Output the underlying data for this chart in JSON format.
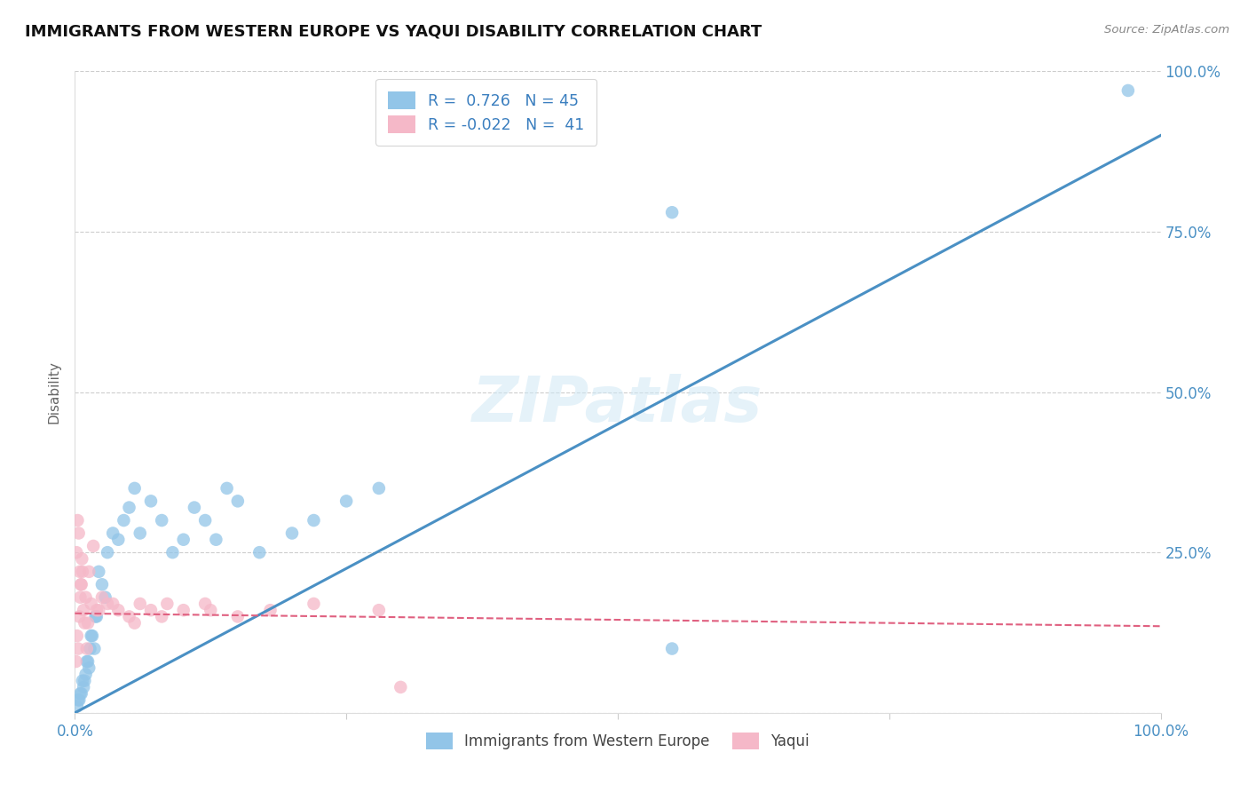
{
  "title": "IMMIGRANTS FROM WESTERN EUROPE VS YAQUI DISABILITY CORRELATION CHART",
  "source": "Source: ZipAtlas.com",
  "ylabel": "Disability",
  "watermark": "ZIPatlas",
  "blue_R": 0.726,
  "blue_N": 45,
  "pink_R": -0.022,
  "pink_N": 41,
  "blue_label": "Immigrants from Western Europe",
  "pink_label": "Yaqui",
  "blue_color": "#92c5e8",
  "pink_color": "#f5b8c8",
  "blue_line_color": "#4a90c4",
  "pink_line_color": "#e06080",
  "background_color": "#ffffff",
  "grid_color": "#c8c8c8",
  "xlim": [
    0,
    100
  ],
  "ylim": [
    0,
    100
  ],
  "blue_x": [
    0.3,
    0.5,
    0.7,
    0.8,
    1.0,
    1.2,
    1.3,
    1.5,
    1.8,
    2.0,
    2.2,
    2.5,
    2.8,
    3.0,
    3.5,
    4.0,
    4.5,
    5.0,
    5.5,
    6.0,
    7.0,
    8.0,
    9.0,
    10.0,
    11.0,
    12.0,
    13.0,
    14.0,
    15.0,
    17.0,
    20.0,
    22.0,
    25.0,
    28.0,
    55.0,
    55.0,
    97.0,
    0.2,
    0.4,
    0.6,
    0.9,
    1.1,
    1.4,
    1.6,
    1.9
  ],
  "blue_y": [
    2,
    3,
    5,
    4,
    6,
    8,
    7,
    12,
    10,
    15,
    22,
    20,
    18,
    25,
    28,
    27,
    30,
    32,
    35,
    28,
    33,
    30,
    25,
    27,
    32,
    30,
    27,
    35,
    33,
    25,
    28,
    30,
    33,
    35,
    10,
    78,
    97,
    1,
    2,
    3,
    5,
    8,
    10,
    12,
    15
  ],
  "pink_x": [
    0.1,
    0.2,
    0.3,
    0.4,
    0.5,
    0.6,
    0.7,
    0.8,
    1.0,
    1.2,
    1.5,
    2.0,
    2.5,
    3.0,
    4.0,
    5.0,
    6.0,
    7.0,
    8.0,
    10.0,
    12.0,
    15.0,
    18.0,
    22.0,
    28.0,
    0.15,
    0.25,
    0.35,
    0.45,
    0.55,
    0.65,
    0.9,
    1.1,
    1.3,
    1.7,
    2.2,
    3.5,
    5.5,
    8.5,
    12.5,
    30.0
  ],
  "pink_y": [
    8,
    12,
    10,
    15,
    18,
    20,
    22,
    16,
    18,
    14,
    17,
    16,
    18,
    17,
    16,
    15,
    17,
    16,
    15,
    16,
    17,
    15,
    16,
    17,
    16,
    25,
    30,
    28,
    22,
    20,
    24,
    14,
    10,
    22,
    26,
    16,
    17,
    14,
    17,
    16,
    4
  ],
  "blue_line_x0": 0,
  "blue_line_y0": 0,
  "blue_line_x1": 100,
  "blue_line_y1": 90,
  "pink_line_x0": 0,
  "pink_line_y0": 15.5,
  "pink_line_x1": 100,
  "pink_line_y1": 13.5
}
